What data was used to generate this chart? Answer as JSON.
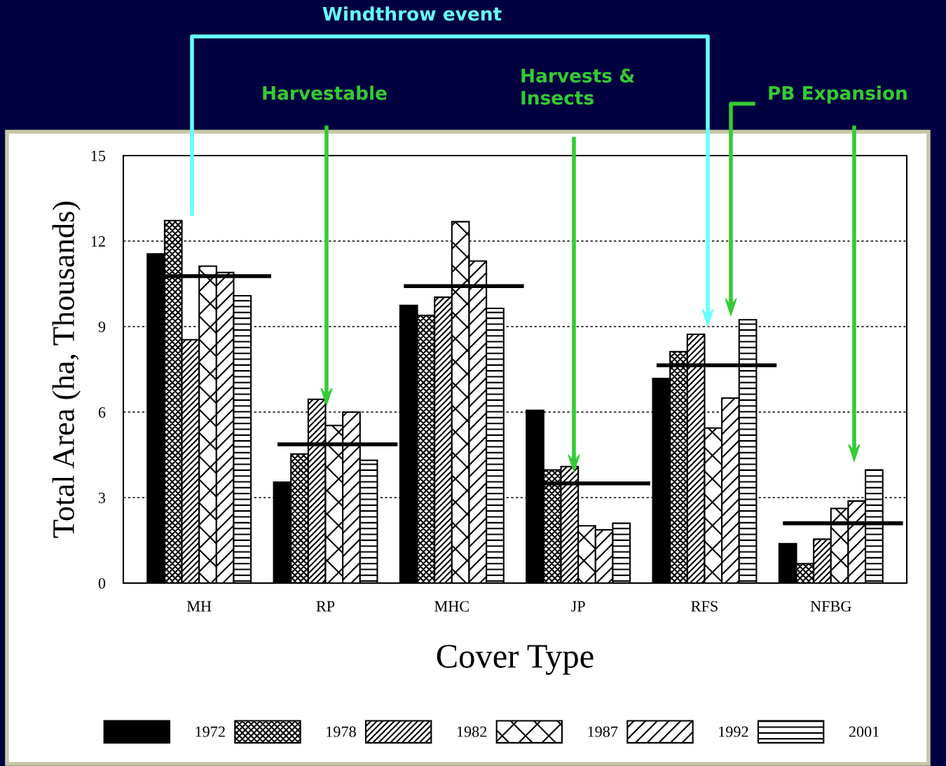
{
  "chart_data": {
    "type": "bar",
    "xlabel": "Cover Type",
    "ylabel": "Total Area (ha, Thousands)",
    "categories": [
      "MH",
      "RP",
      "MHC",
      "JP",
      "RFS",
      "NFBG"
    ],
    "series": [
      {
        "name": "1972",
        "color": "#000000",
        "values": [
          11.55,
          3.54,
          9.74,
          6.06,
          7.18,
          1.38
        ]
      },
      {
        "name": "1978",
        "color": "#000000",
        "values": [
          12.72,
          4.53,
          9.39,
          3.97,
          8.12,
          0.68
        ]
      },
      {
        "name": "1982",
        "color": "#000000",
        "values": [
          8.54,
          6.45,
          10.03,
          4.09,
          8.73,
          1.54
        ]
      },
      {
        "name": "1987",
        "color": "#000000",
        "values": [
          11.12,
          5.53,
          12.68,
          2.01,
          5.44,
          2.62
        ]
      },
      {
        "name": "1992",
        "color": "#000000",
        "values": [
          10.9,
          6.0,
          11.3,
          1.87,
          6.49,
          2.88
        ]
      },
      {
        "name": "2001",
        "color": "#000000",
        "values": [
          10.08,
          4.31,
          9.64,
          2.1,
          9.24,
          3.97
        ]
      }
    ],
    "ref_lines": [
      {
        "axis": "y",
        "value": 10.77,
        "color": "#000000"
      },
      {
        "axis": "y",
        "value": 4.87,
        "color": "#000000"
      },
      {
        "axis": "y",
        "value": 10.42,
        "color": "#000000"
      },
      {
        "axis": "y",
        "value": 3.5,
        "color": "#000000"
      },
      {
        "axis": "y",
        "value": 7.64,
        "color": "#000000"
      },
      {
        "axis": "y",
        "value": 2.1,
        "color": "#000000"
      }
    ],
    "ylim": [
      0,
      15
    ],
    "yticks": [
      0,
      3,
      6,
      9,
      12,
      15
    ],
    "grid": "y",
    "legend": "bottom",
    "annotations": [
      "Windthrow event",
      "Harvestable",
      "Harvests &\nInsects",
      "PB Expansion"
    ]
  }
}
